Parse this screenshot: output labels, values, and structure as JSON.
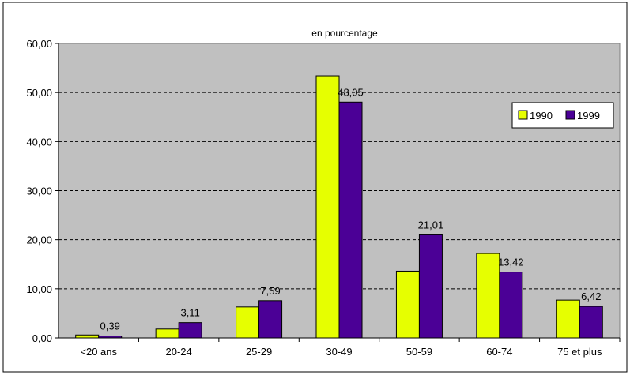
{
  "chart_data": {
    "type": "bar",
    "title": "en pourcentage",
    "categories": [
      "<20 ans",
      "20-24",
      "25-29",
      "30-49",
      "50-59",
      "60-74",
      "75 et plus"
    ],
    "series": [
      {
        "name": "1990",
        "color": "#e6ff00",
        "values": [
          0.6,
          1.8,
          6.3,
          53.4,
          13.6,
          17.2,
          7.7
        ],
        "labels": [
          "",
          "",
          "",
          "",
          "",
          "",
          ""
        ]
      },
      {
        "name": "1999",
        "color": "#4b0096",
        "values": [
          0.39,
          3.11,
          7.59,
          48.05,
          21.01,
          13.42,
          6.42
        ],
        "labels": [
          "0,39",
          "3,11",
          "7,59",
          "48,05",
          "21,01",
          "13,42",
          "6,42"
        ]
      }
    ],
    "ylim": [
      0,
      60
    ],
    "yticks": [
      "0,00",
      "10,00",
      "20,00",
      "30,00",
      "40,00",
      "50,00",
      "60,00"
    ],
    "xlabel": "",
    "ylabel": "",
    "grid": "horizontal dashed",
    "legend_position": "top-right",
    "plot_background": "#c0c0c0"
  }
}
